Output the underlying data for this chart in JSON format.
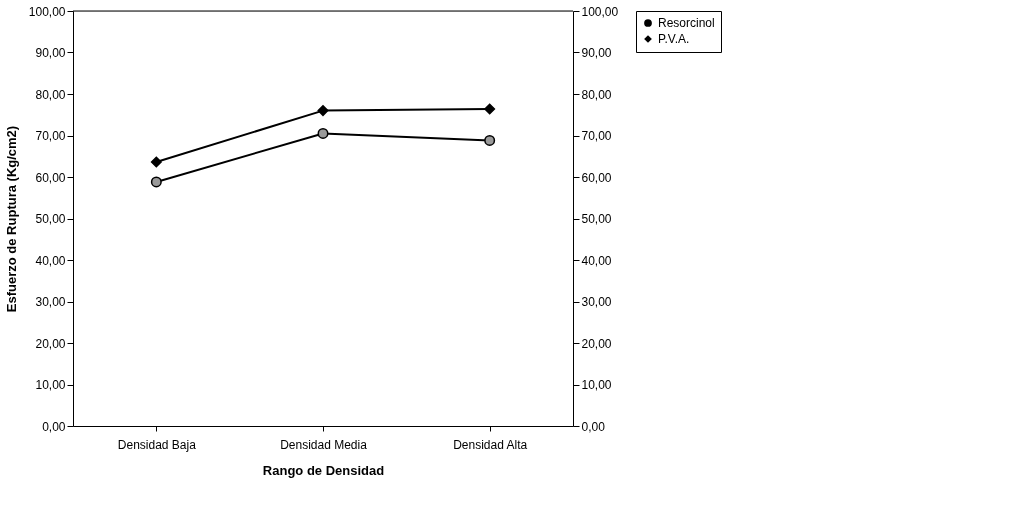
{
  "chart_data": {
    "type": "line",
    "xlabel": "Rango de Densidad",
    "ylabel": "Esfuerzo de Ruptura (Kg/cm2)",
    "categories": [
      "Densidad Baja",
      "Densidad Media",
      "Densidad Alta"
    ],
    "series": [
      {
        "name": "Resorcinol",
        "color": "#000000",
        "marker": "circle",
        "values": [
          58.8,
          70.5,
          68.8
        ]
      },
      {
        "name": "P.V.A.",
        "color": "#000000",
        "marker": "diamond",
        "values": [
          63.6,
          76.0,
          76.4
        ]
      }
    ],
    "ylim": [
      0,
      100
    ],
    "yticks": [
      {
        "value": 0,
        "label": "0,00"
      },
      {
        "value": 10,
        "label": "10,00"
      },
      {
        "value": 20,
        "label": "20,00"
      },
      {
        "value": 30,
        "label": "30,00"
      },
      {
        "value": 40,
        "label": "40,00"
      },
      {
        "value": 50,
        "label": "50,00"
      },
      {
        "value": 60,
        "label": "60,00"
      },
      {
        "value": 70,
        "label": "70,00"
      },
      {
        "value": 80,
        "label": "80,00"
      },
      {
        "value": 90,
        "label": "90,00"
      },
      {
        "value": 100,
        "label": "100,00"
      }
    ],
    "y2lim": [
      0,
      100
    ],
    "y2ticks": [
      {
        "value": 0,
        "label": "0,00"
      },
      {
        "value": 10,
        "label": "10,00"
      },
      {
        "value": 20,
        "label": "20,00"
      },
      {
        "value": 30,
        "label": "30,00"
      },
      {
        "value": 40,
        "label": "40,00"
      },
      {
        "value": 50,
        "label": "50,00"
      },
      {
        "value": 60,
        "label": "60,00"
      },
      {
        "value": 70,
        "label": "70,00"
      },
      {
        "value": 80,
        "label": "80,00"
      },
      {
        "value": 90,
        "label": "90,00"
      },
      {
        "value": 100,
        "label": "100,00"
      }
    ],
    "grid": false,
    "legend": "right",
    "line_style": "solid"
  }
}
